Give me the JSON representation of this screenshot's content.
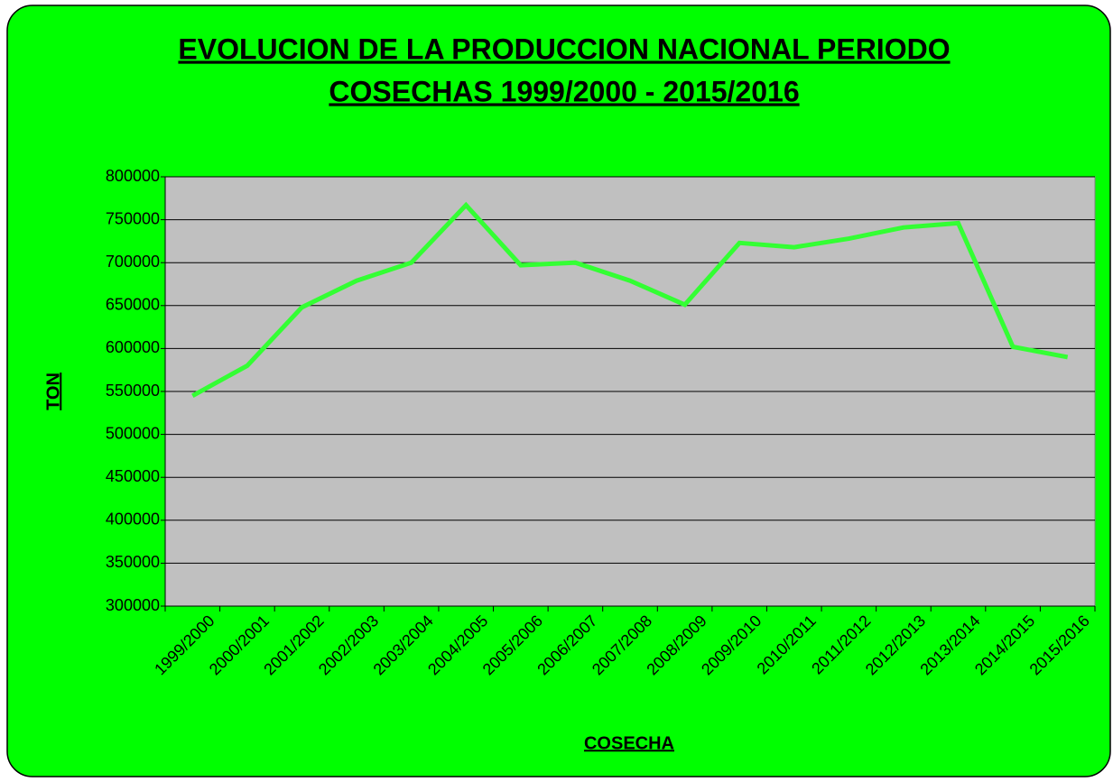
{
  "chart_data": {
    "type": "line",
    "title": [
      "EVOLUCION DE LA PRODUCCION NACIONAL PERIODO",
      "COSECHAS 1999/2000 - 2015/2016"
    ],
    "x_label": "COSECHA",
    "y_label": "TON",
    "categories": [
      "1999/2000",
      "2000/2001",
      "2001/2002",
      "2002/2003",
      "2003/2004",
      "2004/2005",
      "2005/2006",
      "2006/2007",
      "2007/2008",
      "2008/2009",
      "2009/2010",
      "2010/2011",
      "2011/2012",
      "2012/2013",
      "2013/2014",
      "2014/2015",
      "2015/2016"
    ],
    "series": [
      {
        "name": "TON",
        "color": "#33ff33",
        "values": [
          545000,
          580000,
          648000,
          679000,
          700000,
          767000,
          697000,
          700000,
          679000,
          651000,
          723000,
          718000,
          728000,
          741000,
          746000,
          602000,
          590000
        ]
      }
    ],
    "ylim": [
      300000,
      800000
    ],
    "yticks": [
      300000,
      350000,
      400000,
      450000,
      500000,
      550000,
      600000,
      650000,
      700000,
      750000,
      800000
    ],
    "grid": true,
    "background": "#00ff00",
    "plot_background": "#c0c0c0"
  }
}
